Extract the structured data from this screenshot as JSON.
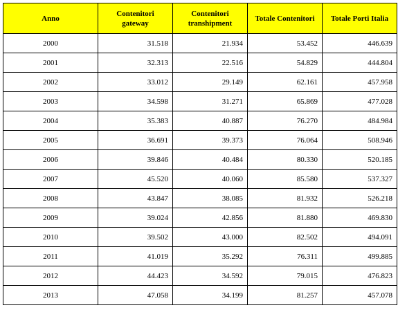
{
  "colors": {
    "header_background": "#ffff00",
    "border": "#000000",
    "text": "#000000"
  },
  "table": {
    "headers": [
      "Anno",
      "Contenitori\ngateway",
      "Contenitori\ntranshipment",
      "Totale Contenitori",
      "Totale Porti Italia"
    ],
    "rows": [
      [
        "2000",
        "31.518",
        "21.934",
        "53.452",
        "446.639"
      ],
      [
        "2001",
        "32.313",
        "22.516",
        "54.829",
        "444.804"
      ],
      [
        "2002",
        "33.012",
        "29.149",
        "62.161",
        "457.958"
      ],
      [
        "2003",
        "34.598",
        "31.271",
        "65.869",
        "477.028"
      ],
      [
        "2004",
        "35.383",
        "40.887",
        "76.270",
        "484.984"
      ],
      [
        "2005",
        "36.691",
        "39.373",
        "76.064",
        "508.946"
      ],
      [
        "2006",
        "39.846",
        "40.484",
        "80.330",
        "520.185"
      ],
      [
        "2007",
        "45.520",
        "40.060",
        "85.580",
        "537.327"
      ],
      [
        "2008",
        "43.847",
        "38.085",
        "81.932",
        "526.218"
      ],
      [
        "2009",
        "39.024",
        "42.856",
        "81.880",
        "469.830"
      ],
      [
        "2010",
        "39.502",
        "43.000",
        "82.502",
        "494.091"
      ],
      [
        "2011",
        "41.019",
        "35.292",
        "76.311",
        "499.885"
      ],
      [
        "2012",
        "44.423",
        "34.592",
        "79.015",
        "476.823"
      ],
      [
        "2013",
        "47.058",
        "34.199",
        "81.257",
        "457.078"
      ]
    ]
  }
}
